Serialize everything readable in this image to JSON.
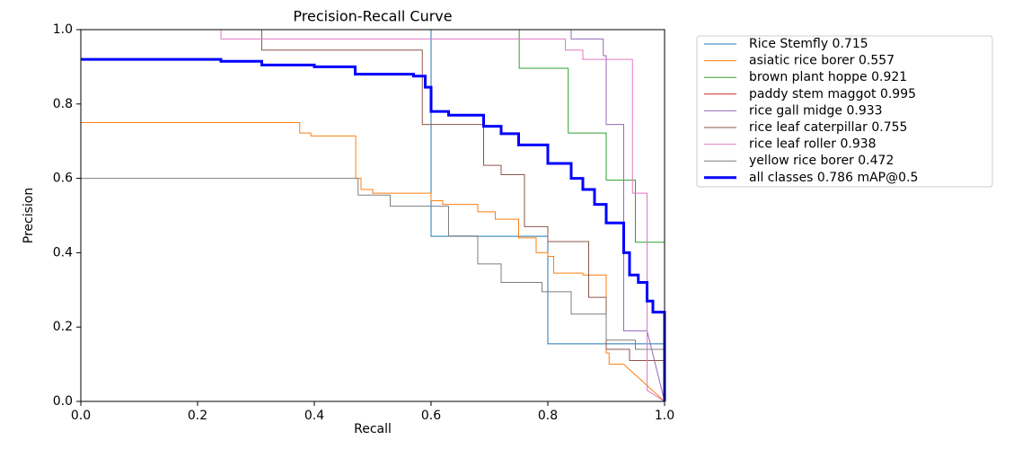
{
  "chart_data": {
    "type": "line",
    "title": "Precision-Recall Curve",
    "x_label": "Recall",
    "y_label": "Precision",
    "xlim": [
      0,
      1
    ],
    "ylim": [
      0,
      1
    ],
    "xticks": [
      {
        "value": 0,
        "label": "0.0"
      },
      0.2,
      0.4,
      0.6,
      0.8,
      {
        "value": 1,
        "label": "1.0"
      }
    ],
    "yticks": [
      {
        "value": 0,
        "label": "0.0"
      },
      0.2,
      0.4,
      0.6,
      0.8,
      {
        "value": 1,
        "label": "1.0"
      }
    ],
    "series": [
      {
        "name": "Rice Stemfly 0.715",
        "color": "#1f77b4",
        "width": 1,
        "x": [
          0,
          0.6,
          0.6,
          0.8,
          0.8,
          1,
          1
        ],
        "values": [
          1,
          1,
          0.444,
          0.444,
          0.155,
          0.155,
          0
        ]
      },
      {
        "name": "asiatic rice borer 0.557",
        "color": "#ff7f0e",
        "width": 1,
        "x": [
          0,
          0.375,
          0.375,
          0.394,
          0.394,
          0.471,
          0.471,
          0.48,
          0.48,
          0.5,
          0.5,
          0.6,
          0.6,
          0.62,
          0.62,
          0.68,
          0.68,
          0.71,
          0.71,
          0.75,
          0.75,
          0.78,
          0.78,
          0.8,
          0.8,
          0.81,
          0.81,
          0.86,
          0.86,
          0.9,
          0.9,
          0.905,
          0.905,
          0.93,
          1
        ],
        "values": [
          0.75,
          0.75,
          0.722,
          0.722,
          0.714,
          0.714,
          0.6,
          0.6,
          0.57,
          0.57,
          0.56,
          0.56,
          0.54,
          0.54,
          0.53,
          0.53,
          0.51,
          0.51,
          0.49,
          0.49,
          0.44,
          0.44,
          0.4,
          0.4,
          0.39,
          0.39,
          0.345,
          0.345,
          0.34,
          0.34,
          0.13,
          0.13,
          0.1,
          0.1,
          0
        ]
      },
      {
        "name": "brown plant hoppe 0.921",
        "color": "#2ca02c",
        "width": 1,
        "x": [
          0,
          0.751,
          0.751,
          0.835,
          0.835,
          0.9,
          0.9,
          0.95,
          0.95,
          1,
          1
        ],
        "values": [
          1,
          1,
          0.896,
          0.896,
          0.722,
          0.722,
          0.595,
          0.595,
          0.428,
          0.428,
          0
        ]
      },
      {
        "name": "paddy stem maggot 0.995",
        "color": "#d62728",
        "width": 1,
        "x": [
          0,
          1,
          1
        ],
        "values": [
          1,
          1,
          0
        ]
      },
      {
        "name": "rice gall midge 0.933",
        "color": "#9467bd",
        "width": 1,
        "x": [
          0,
          0.84,
          0.84,
          0.895,
          0.895,
          0.9,
          0.9,
          0.93,
          0.93,
          0.935,
          0.935,
          0.97,
          1
        ],
        "values": [
          1,
          1,
          0.975,
          0.975,
          0.93,
          0.93,
          0.745,
          0.745,
          0.19,
          0.19,
          0.19,
          0.19,
          0
        ]
      },
      {
        "name": "rice leaf caterpillar 0.755",
        "color": "#8c564b",
        "width": 1,
        "x": [
          0,
          0.31,
          0.31,
          0.585,
          0.585,
          0.69,
          0.69,
          0.72,
          0.72,
          0.76,
          0.76,
          0.8,
          0.8,
          0.87,
          0.87,
          0.9,
          0.9,
          0.94,
          0.94,
          1,
          1
        ],
        "values": [
          1,
          1,
          0.945,
          0.945,
          0.745,
          0.745,
          0.635,
          0.635,
          0.61,
          0.61,
          0.47,
          0.47,
          0.43,
          0.43,
          0.28,
          0.28,
          0.14,
          0.14,
          0.11,
          0.11,
          0
        ]
      },
      {
        "name": "rice leaf roller 0.938",
        "color": "#e377c2",
        "width": 1,
        "x": [
          0,
          0.24,
          0.24,
          0.83,
          0.83,
          0.86,
          0.86,
          0.945,
          0.945,
          0.97,
          0.97,
          1
        ],
        "values": [
          1,
          1,
          0.975,
          0.975,
          0.945,
          0.945,
          0.92,
          0.92,
          0.56,
          0.56,
          0.03,
          0
        ]
      },
      {
        "name": "yellow rice borer 0.472",
        "color": "#7f7f7f",
        "width": 1,
        "x": [
          0,
          0.475,
          0.475,
          0.53,
          0.53,
          0.63,
          0.63,
          0.68,
          0.68,
          0.72,
          0.72,
          0.79,
          0.79,
          0.84,
          0.84,
          0.9,
          0.9,
          0.95,
          0.95,
          1,
          1
        ],
        "values": [
          0.6,
          0.6,
          0.555,
          0.555,
          0.525,
          0.525,
          0.445,
          0.445,
          0.37,
          0.37,
          0.32,
          0.32,
          0.295,
          0.295,
          0.235,
          0.235,
          0.165,
          0.165,
          0.14,
          0.14,
          0
        ]
      },
      {
        "name": "all classes 0.786 mAP@0.5",
        "color": "#0000ff",
        "width": 3,
        "x": [
          0,
          0.24,
          0.24,
          0.31,
          0.31,
          0.4,
          0.4,
          0.47,
          0.47,
          0.57,
          0.57,
          0.59,
          0.59,
          0.6,
          0.6,
          0.63,
          0.63,
          0.69,
          0.69,
          0.72,
          0.72,
          0.75,
          0.75,
          0.8,
          0.8,
          0.84,
          0.84,
          0.86,
          0.86,
          0.88,
          0.88,
          0.9,
          0.9,
          0.93,
          0.93,
          0.94,
          0.94,
          0.955,
          0.955,
          0.97,
          0.97,
          0.98,
          0.98,
          1,
          1
        ],
        "values": [
          0.92,
          0.92,
          0.915,
          0.915,
          0.905,
          0.905,
          0.9,
          0.9,
          0.88,
          0.88,
          0.875,
          0.875,
          0.845,
          0.845,
          0.78,
          0.78,
          0.77,
          0.77,
          0.74,
          0.74,
          0.72,
          0.72,
          0.69,
          0.69,
          0.64,
          0.64,
          0.6,
          0.6,
          0.57,
          0.57,
          0.53,
          0.53,
          0.48,
          0.48,
          0.4,
          0.4,
          0.34,
          0.34,
          0.32,
          0.32,
          0.27,
          0.27,
          0.24,
          0.24,
          0
        ]
      }
    ]
  }
}
